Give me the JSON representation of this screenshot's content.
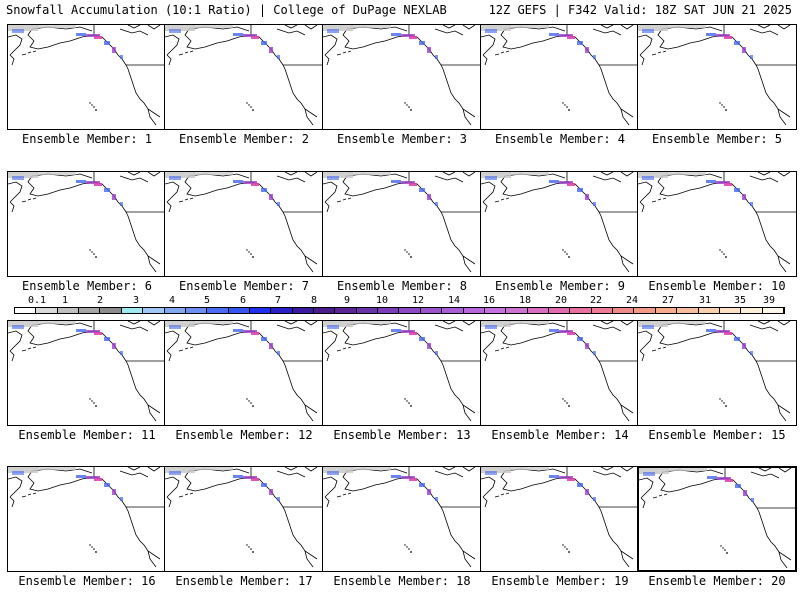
{
  "header": {
    "left": "Snowfall Accumulation (10:1 Ratio) | College of DuPage NEXLAB",
    "right": "12Z GEFS | F342 Valid: 18Z SAT JUN 21 2025"
  },
  "panels": [
    {
      "label": "Ensemble Member: 1"
    },
    {
      "label": "Ensemble Member: 2"
    },
    {
      "label": "Ensemble Member: 3"
    },
    {
      "label": "Ensemble Member: 4"
    },
    {
      "label": "Ensemble Member: 5"
    },
    {
      "label": "Ensemble Member: 6"
    },
    {
      "label": "Ensemble Member: 7"
    },
    {
      "label": "Ensemble Member: 8"
    },
    {
      "label": "Ensemble Member: 9"
    },
    {
      "label": "Ensemble Member: 10"
    },
    {
      "label": "Ensemble Member: 11"
    },
    {
      "label": "Ensemble Member: 12"
    },
    {
      "label": "Ensemble Member: 13"
    },
    {
      "label": "Ensemble Member: 14"
    },
    {
      "label": "Ensemble Member: 15"
    },
    {
      "label": "Ensemble Member: 16"
    },
    {
      "label": "Ensemble Member: 17"
    },
    {
      "label": "Ensemble Member: 18"
    },
    {
      "label": "Ensemble Member: 19"
    },
    {
      "label": "Ensemble Member: 20",
      "selected": true
    }
  ],
  "colorbar": {
    "labels": [
      "0.1",
      "1",
      "2",
      "3",
      "4",
      "5",
      "6",
      "7",
      "8",
      "9",
      "10",
      "12",
      "14",
      "16",
      "18",
      "20",
      "22",
      "24",
      "27",
      "31",
      "35",
      "39"
    ],
    "colors": [
      "#ffffff",
      "#d9d9d9",
      "#bfbfbf",
      "#a6a6a6",
      "#8c8c8c",
      "#a0e8ef",
      "#9ec9f5",
      "#7fa8f0",
      "#6d8ff2",
      "#4a6cf5",
      "#3355f2",
      "#1d2ff0",
      "#2a20c8",
      "#3a1aa0",
      "#4c1c8c",
      "#5a2696",
      "#6a32a8",
      "#7c3cb8",
      "#8c48c4",
      "#9c52cc",
      "#aa5ed6",
      "#b866dc",
      "#c470e0",
      "#cc72d0",
      "#d86ec2",
      "#e26ab0",
      "#e870a0",
      "#ee7c96",
      "#f08a8a",
      "#f39a86",
      "#f4ac8c",
      "#f6be9a",
      "#f8d0ac",
      "#fae2c2",
      "#fcefd8",
      "#fff8ea"
    ]
  },
  "colors": {
    "snow_light": "#c8c8c8",
    "snow_blue": "#4466ee",
    "snow_purple": "#9b3fc8",
    "snow_magenta": "#e040b0"
  }
}
